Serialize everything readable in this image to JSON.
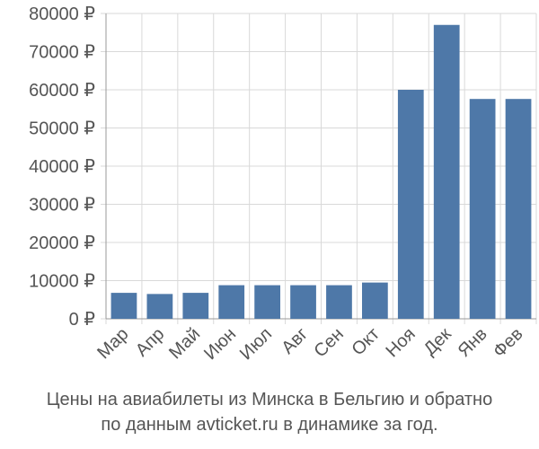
{
  "chart_data": {
    "type": "bar",
    "categories": [
      "Мар",
      "Апр",
      "Май",
      "Июн",
      "Июл",
      "Авг",
      "Сен",
      "Окт",
      "Ноя",
      "Дек",
      "Янв",
      "Фев"
    ],
    "values": [
      6800,
      6500,
      6800,
      8800,
      8800,
      8800,
      8800,
      9500,
      60000,
      77000,
      57600,
      57600
    ],
    "ylim": [
      0,
      80000
    ],
    "yticks": [
      0,
      10000,
      20000,
      30000,
      40000,
      50000,
      60000,
      70000,
      80000
    ],
    "ytick_labels": [
      "0 ₽",
      "10000 ₽",
      "20000 ₽",
      "30000 ₽",
      "40000 ₽",
      "50000 ₽",
      "60000 ₽",
      "70000 ₽",
      "80000 ₽"
    ],
    "bar_color": "#4e78a8",
    "grid": true,
    "title": "",
    "xlabel": "",
    "ylabel": ""
  },
  "caption": {
    "line1": "Цены на авиабилеты из Минска в Бельгию и обратно",
    "line2": "по данным avticket.ru в динамике за год."
  }
}
